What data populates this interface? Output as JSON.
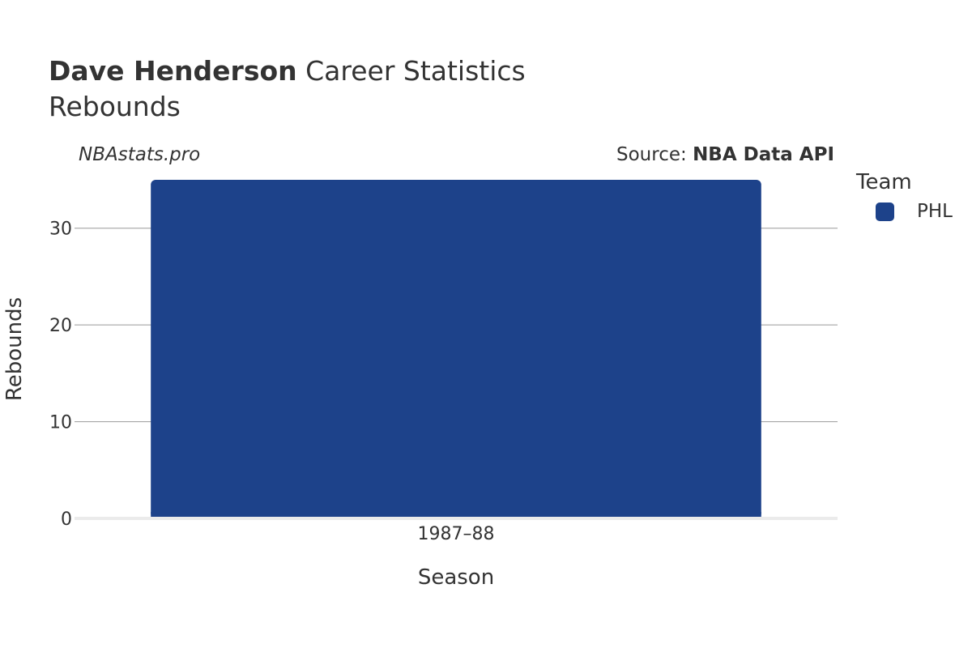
{
  "title": {
    "player": "Dave Henderson",
    "rest": " Career Statistics",
    "subtitle": "Rebounds"
  },
  "watermark": "NBAstats.pro",
  "source": {
    "prefix": "Source: ",
    "name": "NBA Data API"
  },
  "legend": {
    "title": "Team",
    "items": [
      {
        "label": "PHL",
        "color": "#1d428a"
      }
    ]
  },
  "chart_data": {
    "type": "bar",
    "categories": [
      "1987–88"
    ],
    "series": [
      {
        "name": "PHL",
        "values": [
          35
        ],
        "color": "#1d428a"
      }
    ],
    "xlabel": "Season",
    "ylabel": "Rebounds",
    "ylim": [
      0,
      35
    ],
    "yticks": [
      0,
      10,
      20,
      30
    ],
    "grid": true
  }
}
